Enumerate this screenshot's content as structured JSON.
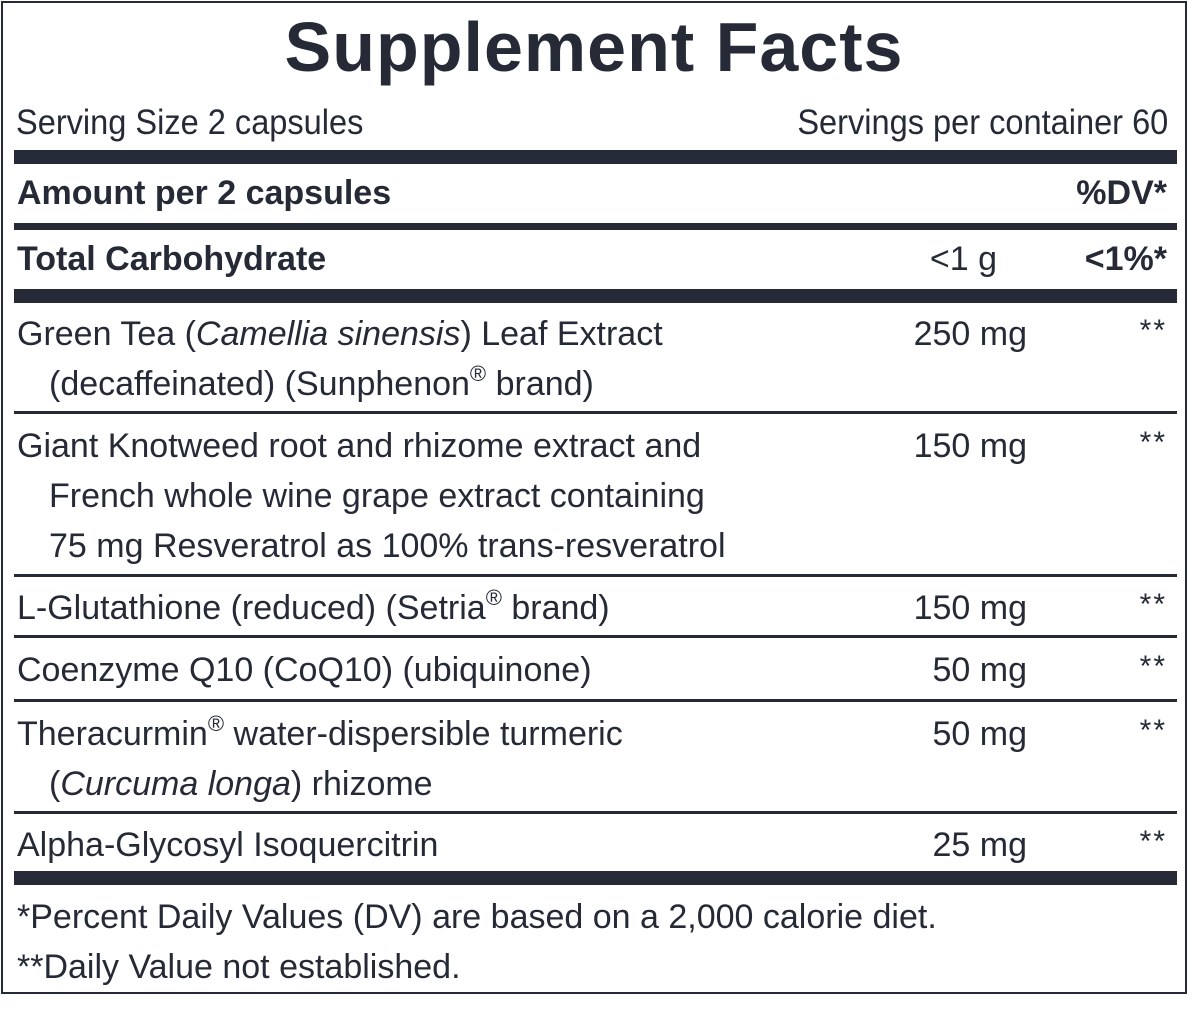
{
  "title": "Supplement Facts",
  "serving_size": "Serving Size 2 capsules",
  "servings_per_container": "Servings per container 60",
  "header": {
    "amount_per": "Amount per 2 capsules",
    "dv": "%DV*"
  },
  "carbohydrate": {
    "label": "Total Carbohydrate",
    "amount": "<1 g",
    "dv": "<1%*"
  },
  "ingredients": [
    {
      "name_pre": "Green Tea (",
      "name_italic": "Camellia sinensis",
      "name_post": ") Leaf Extract",
      "line2_pre": "(decaffeinated) (Sunphenon",
      "reg": "®",
      "line2_post": " brand)",
      "amount": "250 mg",
      "dv": "**"
    },
    {
      "line1": "Giant Knotweed root and rhizome extract and",
      "line2": "French whole wine grape extract containing",
      "line3": "75 mg Resveratrol as 100% trans-resveratrol",
      "amount": "150 mg",
      "dv": "**"
    },
    {
      "name_pre": "L-Glutathione (reduced) (Setria",
      "reg": "®",
      "name_post": " brand)",
      "amount": "150 mg",
      "dv": "**"
    },
    {
      "name": "Coenzyme Q10 (CoQ10) (ubiquinone)",
      "amount": "50 mg",
      "dv": "**"
    },
    {
      "name_pre": "Theracurmin",
      "reg": "®",
      "name_post": " water-dispersible turmeric",
      "line2_pre": "(",
      "line2_italic": "Curcuma longa",
      "line2_post": ") rhizome",
      "amount": "50 mg",
      "dv": "**"
    },
    {
      "name": "Alpha-Glycosyl Isoquercitrin",
      "amount": "25 mg",
      "dv": "**"
    }
  ],
  "footnotes": [
    "*Percent Daily Values (DV) are based on a 2,000 calorie diet.",
    "**Daily Value not established."
  ]
}
